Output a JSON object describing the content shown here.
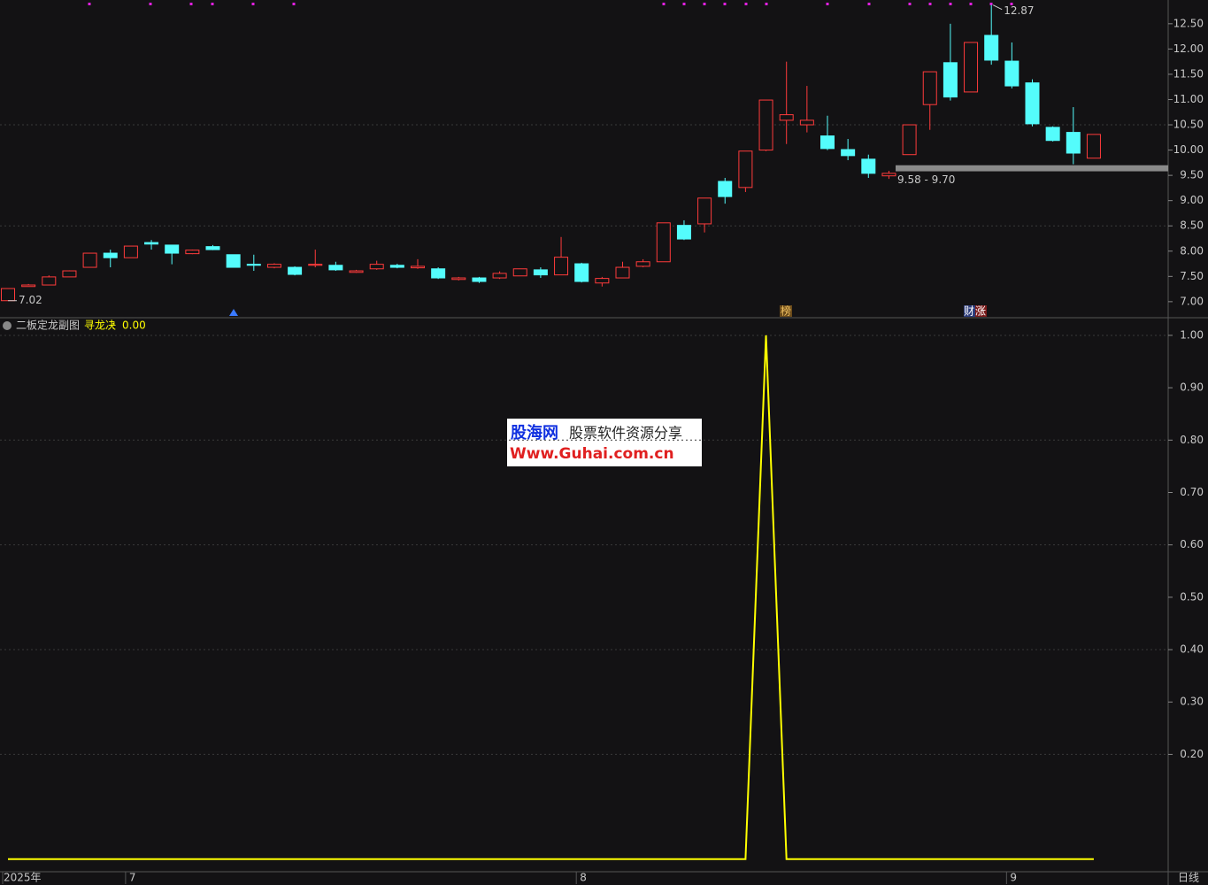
{
  "chart_data": [
    {
      "type": "candlestick",
      "categories": [
        "2025年",
        null,
        null,
        null,
        null,
        null,
        "7",
        null,
        null,
        null,
        null,
        null,
        null,
        null,
        null,
        null,
        null,
        null,
        null,
        null,
        null,
        null,
        null,
        null,
        null,
        null,
        null,
        null,
        "8",
        null,
        null,
        null,
        null,
        null,
        null,
        null,
        null,
        null,
        null,
        null,
        null,
        null,
        null,
        null,
        null,
        null,
        null,
        null,
        null,
        "9",
        null,
        null,
        null,
        null
      ],
      "open": [
        7.02,
        7.3,
        7.33,
        7.49,
        7.68,
        7.96,
        7.87,
        8.17,
        8.12,
        7.95,
        8.09,
        7.93,
        7.74,
        7.68,
        7.68,
        7.72,
        7.72,
        7.58,
        7.65,
        7.72,
        7.67,
        7.65,
        7.44,
        7.47,
        7.47,
        7.51,
        7.63,
        7.53,
        7.75,
        7.37,
        7.47,
        7.7,
        7.79,
        8.51,
        8.54,
        9.38,
        9.26,
        10.0,
        10.59,
        10.5,
        10.28,
        10.01,
        9.82,
        9.49,
        9.91,
        10.9,
        11.73,
        11.15,
        12.27,
        11.76,
        11.33,
        10.45,
        10.35,
        9.84
      ],
      "high": [
        7.26,
        7.35,
        7.52,
        7.62,
        7.96,
        8.03,
        8.1,
        8.22,
        8.12,
        8.03,
        8.12,
        7.93,
        7.93,
        7.76,
        7.7,
        8.03,
        7.79,
        7.63,
        7.81,
        7.75,
        7.84,
        7.68,
        7.49,
        7.49,
        7.6,
        7.65,
        7.68,
        8.28,
        7.77,
        7.49,
        7.79,
        7.84,
        8.56,
        8.61,
        9.05,
        9.45,
        9.98,
        10.99,
        11.75,
        11.27,
        10.68,
        10.22,
        9.91,
        9.59,
        10.5,
        11.55,
        12.5,
        12.13,
        12.87,
        12.13,
        11.4,
        10.47,
        10.85,
        10.31
      ],
      "low": [
        7.02,
        7.3,
        7.33,
        7.49,
        7.68,
        7.68,
        7.87,
        8.03,
        7.74,
        7.94,
        8.02,
        7.68,
        7.61,
        7.66,
        7.52,
        7.68,
        7.61,
        7.57,
        7.63,
        7.66,
        7.65,
        7.45,
        7.42,
        7.37,
        7.45,
        7.51,
        7.47,
        7.53,
        7.38,
        7.3,
        7.47,
        7.68,
        7.79,
        8.22,
        8.37,
        8.94,
        9.17,
        9.98,
        10.12,
        10.35,
        10.0,
        9.8,
        9.45,
        9.43,
        9.91,
        10.4,
        10.98,
        11.15,
        11.69,
        11.22,
        10.47,
        10.17,
        9.72,
        9.84
      ],
      "close": [
        7.26,
        7.33,
        7.49,
        7.61,
        7.96,
        7.87,
        8.1,
        8.14,
        7.96,
        8.02,
        8.03,
        7.68,
        7.72,
        7.74,
        7.54,
        7.74,
        7.63,
        7.61,
        7.74,
        7.68,
        7.7,
        7.47,
        7.47,
        7.4,
        7.56,
        7.65,
        7.53,
        7.88,
        7.4,
        7.46,
        7.68,
        7.79,
        8.56,
        8.24,
        9.05,
        9.08,
        9.98,
        10.99,
        10.7,
        10.59,
        10.03,
        9.89,
        9.54,
        9.54,
        10.5,
        11.55,
        11.05,
        12.13,
        11.78,
        11.27,
        10.52,
        10.19,
        9.94,
        10.31
      ],
      "up_color": "#ff3b3b",
      "down_color": "#54fcfc",
      "ylim": [
        6.7,
        12.97
      ],
      "yticks": [
        {
          "value": 7,
          "label": "7.00"
        },
        {
          "value": 7.5,
          "label": "7.50"
        },
        {
          "value": 8,
          "label": "8.00"
        },
        {
          "value": 8.5,
          "label": "8.50"
        },
        {
          "value": 9,
          "label": "9.00"
        },
        {
          "value": 9.5,
          "label": "9.50"
        },
        {
          "value": 10,
          "label": "10.00"
        },
        {
          "value": 10.5,
          "label": "10.50"
        },
        {
          "value": 11,
          "label": "11.00"
        },
        {
          "value": 11.5,
          "label": "11.50"
        },
        {
          "value": 12,
          "label": "12.00"
        },
        {
          "value": 12.5,
          "label": "12.50"
        }
      ],
      "grid": [
        8.5,
        10.5
      ],
      "high_mark": 12.87,
      "low_mark": 7.02,
      "range_band": {
        "low": 9.58,
        "high": 9.7,
        "label": "9.58 - 9.70"
      },
      "badges": [
        "榜",
        "财",
        "涨"
      ],
      "period_label": "日线"
    },
    {
      "type": "line",
      "title": "二板定龙副图",
      "series": [
        {
          "name": "寻龙决",
          "color": "#ffff00",
          "value_label": "0.00",
          "values": [
            0,
            0,
            0,
            0,
            0,
            0,
            0,
            0,
            0,
            0,
            0,
            0,
            0,
            0,
            0,
            0,
            0,
            0,
            0,
            0,
            0,
            0,
            0,
            0,
            0,
            0,
            0,
            0,
            0,
            0,
            0,
            0,
            0,
            0,
            0,
            0,
            0,
            1,
            0,
            0,
            0,
            0,
            0,
            0,
            0,
            0,
            0,
            0,
            0,
            0,
            0,
            0,
            0,
            0
          ]
        }
      ],
      "ylim": [
        -0.024,
        1.032
      ],
      "yticks": [
        {
          "value": 0.2,
          "label": "0.20"
        },
        {
          "value": 0.3,
          "label": "0.30"
        },
        {
          "value": 0.4,
          "label": "0.40"
        },
        {
          "value": 0.5,
          "label": "0.50"
        },
        {
          "value": 0.6,
          "label": "0.60"
        },
        {
          "value": 0.7,
          "label": "0.70"
        },
        {
          "value": 0.8,
          "label": "0.80"
        },
        {
          "value": 0.9,
          "label": "0.90"
        },
        {
          "value": 1,
          "label": "1.00"
        }
      ],
      "grid": [
        0.2,
        0.4,
        0.6,
        0.8,
        1.0
      ]
    }
  ],
  "watermark": {
    "brand": "股海网",
    "slogan": "股票软件资源分享",
    "url": "Www.Guhai.com.cn"
  }
}
